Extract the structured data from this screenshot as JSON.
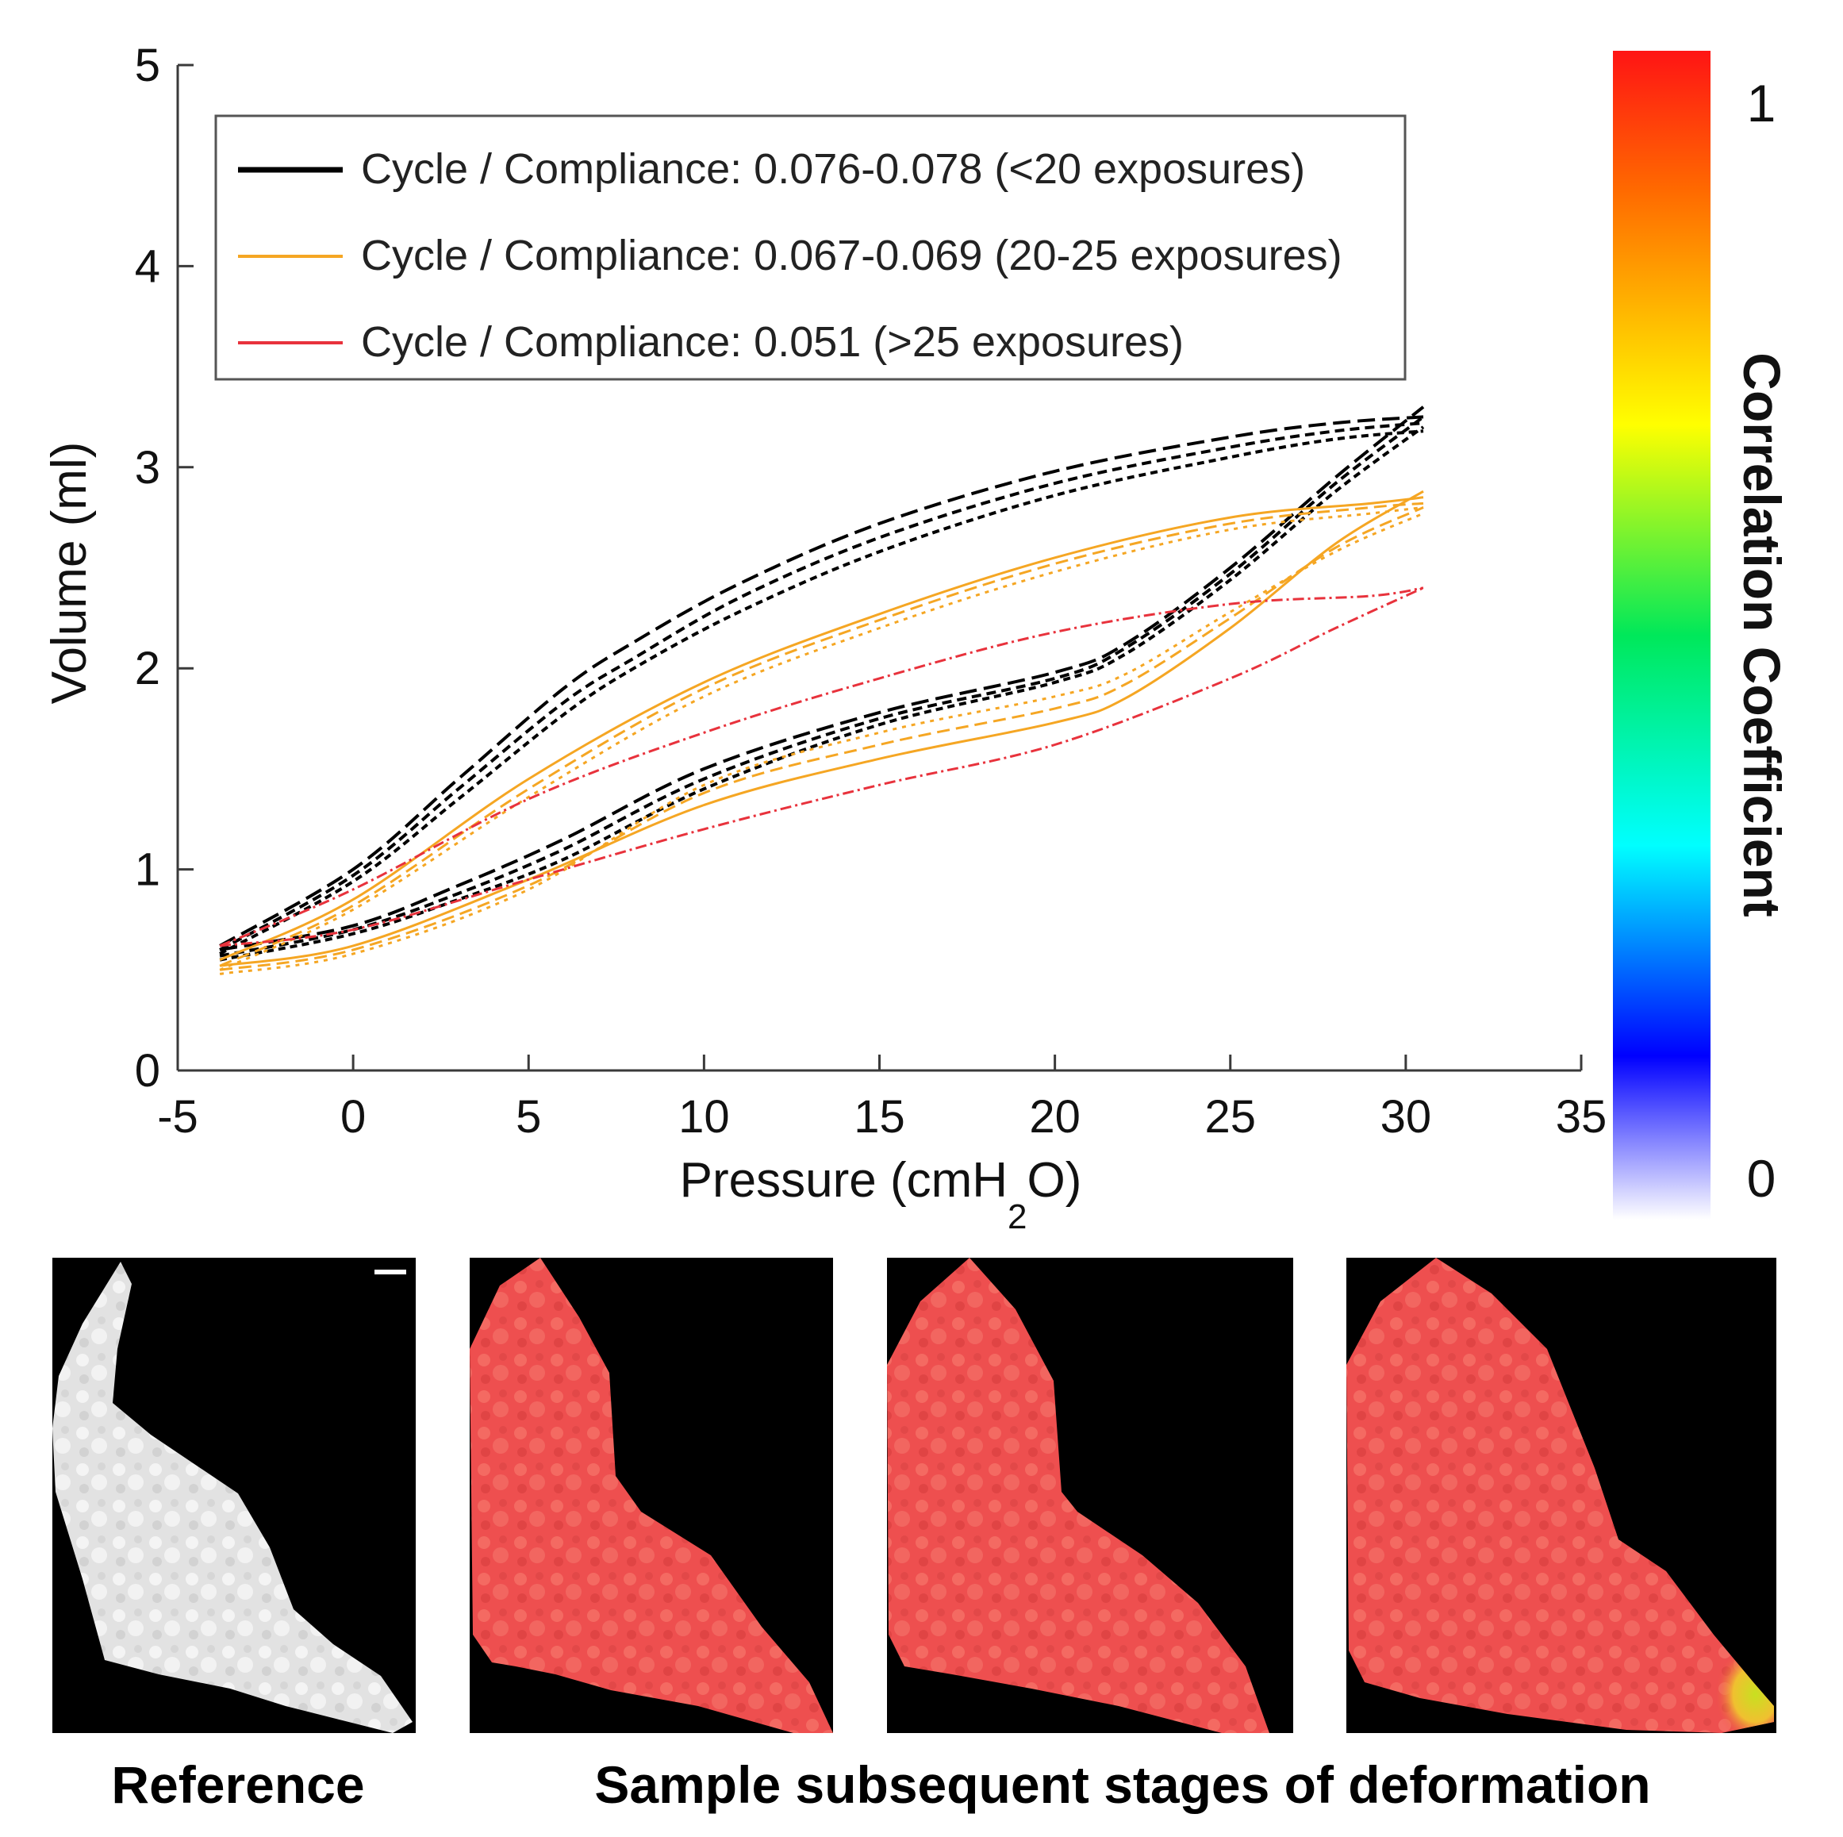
{
  "chart_data": {
    "type": "line",
    "xlabel": "Pressure (cmH",
    "xlabel_sub": "2",
    "xlabel_end": "O)",
    "ylabel": "Volume (ml)",
    "xlim": [
      -5,
      35
    ],
    "ylim": [
      0,
      5
    ],
    "xticks": [
      -5,
      0,
      5,
      10,
      15,
      20,
      25,
      30,
      35
    ],
    "yticks": [
      0,
      1,
      2,
      3,
      4,
      5
    ],
    "legend": [
      {
        "label": "Cycle / Compliance: 0.076-0.078 (<20 exposures)",
        "color": "#000000"
      },
      {
        "label": "Cycle / Compliance: 0.067-0.069 (20-25 exposures)",
        "color": "#f5a623"
      },
      {
        "label": "Cycle / Compliance: 0.051 (>25 exposures)",
        "color": "#e8323c"
      }
    ],
    "series": [
      {
        "name": "black-upper-1",
        "color": "#000000",
        "dash": "22,9",
        "width": 4,
        "x": [
          -3.8,
          0,
          3,
          6,
          8,
          11,
          15,
          20,
          25,
          28,
          30.5
        ],
        "y": [
          0.62,
          1.0,
          1.45,
          1.9,
          2.13,
          2.42,
          2.72,
          2.98,
          3.15,
          3.22,
          3.25
        ]
      },
      {
        "name": "black-upper-2",
        "color": "#000000",
        "dash": "12,7",
        "width": 4,
        "x": [
          -3.8,
          0,
          3,
          6,
          8,
          11,
          15,
          20,
          25,
          28,
          30.5
        ],
        "y": [
          0.6,
          0.97,
          1.4,
          1.83,
          2.05,
          2.35,
          2.65,
          2.92,
          3.1,
          3.18,
          3.22
        ]
      },
      {
        "name": "black-upper-3",
        "color": "#000000",
        "dash": "9,6",
        "width": 4,
        "x": [
          -3.8,
          0,
          3,
          6,
          8,
          11,
          15,
          20,
          25,
          28,
          30.5
        ],
        "y": [
          0.58,
          0.94,
          1.35,
          1.77,
          2.0,
          2.28,
          2.58,
          2.86,
          3.05,
          3.14,
          3.18
        ]
      },
      {
        "name": "black-lower-1",
        "color": "#000000",
        "dash": "22,9",
        "width": 4,
        "x": [
          -3.8,
          0,
          3,
          6,
          10,
          15,
          20,
          22,
          25,
          28,
          30.5
        ],
        "y": [
          0.6,
          0.72,
          0.92,
          1.15,
          1.5,
          1.78,
          1.98,
          2.12,
          2.5,
          2.95,
          3.3
        ]
      },
      {
        "name": "black-lower-2",
        "color": "#000000",
        "dash": "12,7",
        "width": 4,
        "x": [
          -3.8,
          0,
          3,
          6,
          10,
          15,
          20,
          22,
          25,
          28,
          30.5
        ],
        "y": [
          0.57,
          0.7,
          0.88,
          1.1,
          1.45,
          1.75,
          1.95,
          2.1,
          2.47,
          2.92,
          3.25
        ]
      },
      {
        "name": "black-lower-3",
        "color": "#000000",
        "dash": "9,6",
        "width": 4,
        "x": [
          -3.8,
          0,
          3,
          6,
          10,
          15,
          20,
          22,
          25,
          28,
          30.5
        ],
        "y": [
          0.55,
          0.68,
          0.85,
          1.05,
          1.4,
          1.72,
          1.93,
          2.07,
          2.44,
          2.88,
          3.2
        ]
      },
      {
        "name": "orange-upper-1",
        "color": "#f5a623",
        "dash": "",
        "width": 3,
        "x": [
          -3.8,
          0,
          5,
          10,
          15,
          20,
          25,
          29,
          30.5
        ],
        "y": [
          0.55,
          0.85,
          1.45,
          1.93,
          2.27,
          2.55,
          2.75,
          2.82,
          2.85
        ]
      },
      {
        "name": "orange-upper-2",
        "color": "#f5a623",
        "dash": "16,8",
        "width": 3,
        "x": [
          -3.8,
          0,
          5,
          10,
          15,
          20,
          25,
          29,
          30.5
        ],
        "y": [
          0.52,
          0.82,
          1.4,
          1.9,
          2.24,
          2.52,
          2.72,
          2.8,
          2.82
        ]
      },
      {
        "name": "orange-upper-3",
        "color": "#f5a623",
        "dash": "5,7",
        "width": 3,
        "x": [
          -3.8,
          0,
          5,
          10,
          15,
          20,
          25,
          29,
          30.5
        ],
        "y": [
          0.5,
          0.8,
          1.36,
          1.86,
          2.2,
          2.48,
          2.69,
          2.77,
          2.8
        ]
      },
      {
        "name": "orange-lower-1",
        "color": "#f5a623",
        "dash": "",
        "width": 3,
        "x": [
          -3.8,
          0,
          5,
          10,
          15,
          20,
          22,
          25,
          28,
          30.5
        ],
        "y": [
          0.52,
          0.62,
          0.95,
          1.32,
          1.55,
          1.73,
          1.85,
          2.2,
          2.62,
          2.88
        ]
      },
      {
        "name": "orange-lower-2",
        "color": "#f5a623",
        "dash": "16,8",
        "width": 3,
        "x": [
          -3.8,
          0,
          5,
          10,
          15,
          20,
          22,
          25,
          28,
          30.5
        ],
        "y": [
          0.5,
          0.6,
          0.92,
          1.38,
          1.62,
          1.8,
          1.92,
          2.25,
          2.6,
          2.8
        ]
      },
      {
        "name": "orange-lower-3",
        "color": "#f5a623",
        "dash": "5,7",
        "width": 3,
        "x": [
          -3.8,
          0,
          5,
          10,
          15,
          20,
          22,
          25,
          28,
          30.5
        ],
        "y": [
          0.48,
          0.58,
          0.9,
          1.42,
          1.68,
          1.86,
          1.97,
          2.28,
          2.58,
          2.77
        ]
      },
      {
        "name": "red-upper",
        "color": "#e8323c",
        "dash": "14,5,3,5",
        "width": 3,
        "x": [
          -3.8,
          0,
          5,
          10,
          15,
          20,
          25,
          29,
          30.5
        ],
        "y": [
          0.62,
          0.9,
          1.35,
          1.68,
          1.95,
          2.18,
          2.32,
          2.36,
          2.4
        ]
      },
      {
        "name": "red-lower",
        "color": "#e8323c",
        "dash": "14,5,3,5",
        "width": 3,
        "x": [
          -3.8,
          0,
          5,
          10,
          15,
          20,
          25,
          28,
          30.5
        ],
        "y": [
          0.62,
          0.7,
          0.95,
          1.2,
          1.42,
          1.62,
          1.95,
          2.2,
          2.4
        ]
      }
    ]
  },
  "colorbar": {
    "title": "Correlation Coefficient",
    "max_label": "1",
    "min_label": "0",
    "stops": [
      "#ff1414",
      "#ff7a00",
      "#ffff00",
      "#00e000",
      "#00ffff",
      "#0000ff",
      "#ffffff"
    ]
  },
  "panels": {
    "reference_caption": "Reference",
    "stages_caption": "Sample subsequent stages of deformation"
  }
}
